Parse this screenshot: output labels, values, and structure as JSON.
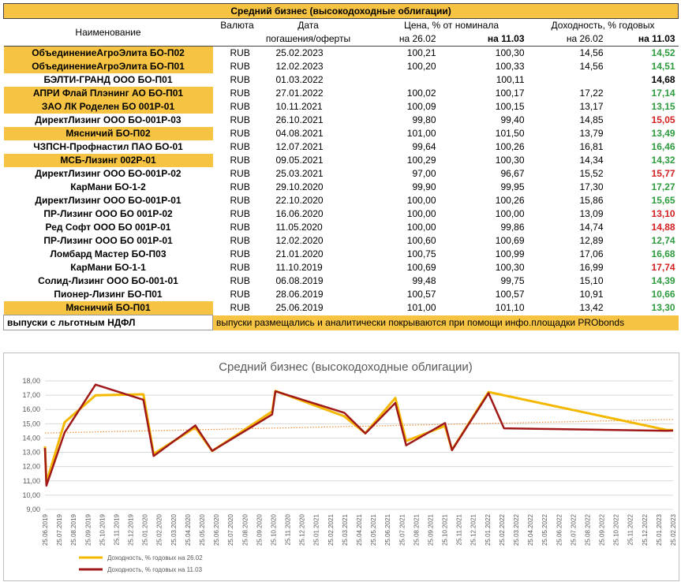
{
  "table": {
    "title": "Средний бизнес (высокодоходные облигации)",
    "headers": {
      "name": "Наименование",
      "currency": "Валюта",
      "date_line1": "Дата",
      "date_line2": "погашения/оферты",
      "price_group": "Цена, % от номинала",
      "price_2602": "на 26.02",
      "price_1103": "на 11.03",
      "yield_group": "Доходность, % годовых",
      "yield_2602": "на 26.02",
      "yield_1103": "на 11.03"
    },
    "rows": [
      {
        "name": "ОбъединениеАгроЭлита  БО-П02",
        "cur": "RUB",
        "date": "25.02.2023",
        "p1": "100,21",
        "p2": "100,30",
        "y1": "14,56",
        "y2": "14,52",
        "hl": true,
        "color": "green"
      },
      {
        "name": "ОбъединениеАгроЭлита  БО-П01",
        "cur": "RUB",
        "date": "12.02.2023",
        "p1": "100,20",
        "p2": "100,33",
        "y1": "14,56",
        "y2": "14,51",
        "hl": true,
        "color": "green"
      },
      {
        "name": "БЭЛТИ-ГРАНД ООО БО-П01",
        "cur": "RUB",
        "date": "01.03.2022",
        "p1": "",
        "p2": "100,11",
        "y1": "",
        "y2": "14,68",
        "hl": false,
        "color": "black"
      },
      {
        "name": "АПРИ Флай Плэнинг АО БО-П01",
        "cur": "RUB",
        "date": "27.01.2022",
        "p1": "100,02",
        "p2": "100,17",
        "y1": "17,22",
        "y2": "17,14",
        "hl": true,
        "color": "green"
      },
      {
        "name": "ЗАО ЛК Роделен БО 001Р-01",
        "cur": "RUB",
        "date": "10.11.2021",
        "p1": "100,09",
        "p2": "100,15",
        "y1": "13,17",
        "y2": "13,15",
        "hl": true,
        "color": "green"
      },
      {
        "name": "ДиректЛизинг ООО БО-001Р-03",
        "cur": "RUB",
        "date": "26.10.2021",
        "p1": "99,80",
        "p2": "99,40",
        "y1": "14,85",
        "y2": "15,05",
        "hl": false,
        "color": "red"
      },
      {
        "name": "Мясничий БО-П02",
        "cur": "RUB",
        "date": "04.08.2021",
        "p1": "101,00",
        "p2": "101,50",
        "y1": "13,79",
        "y2": "13,49",
        "hl": true,
        "color": "green"
      },
      {
        "name": "ЧЗПСН-Профнастил ПАО БО-01",
        "cur": "RUB",
        "date": "12.07.2021",
        "p1": "99,64",
        "p2": "100,26",
        "y1": "16,81",
        "y2": "16,46",
        "hl": false,
        "color": "green"
      },
      {
        "name": "МСБ-Лизинг 002Р-01",
        "cur": "RUB",
        "date": "09.05.2021",
        "p1": "100,29",
        "p2": "100,30",
        "y1": "14,34",
        "y2": "14,32",
        "hl": true,
        "color": "green"
      },
      {
        "name": "ДиректЛизинг ООО БО-001Р-02",
        "cur": "RUB",
        "date": "25.03.2021",
        "p1": "97,00",
        "p2": "96,67",
        "y1": "15,52",
        "y2": "15,77",
        "hl": false,
        "color": "red"
      },
      {
        "name": "КарМани БО-1-2",
        "cur": "RUB",
        "date": "29.10.2020",
        "p1": "99,90",
        "p2": "99,95",
        "y1": "17,30",
        "y2": "17,27",
        "hl": false,
        "color": "green"
      },
      {
        "name": "ДиректЛизинг ООО БО-001Р-01",
        "cur": "RUB",
        "date": "22.10.2020",
        "p1": "100,00",
        "p2": "100,26",
        "y1": "15,86",
        "y2": "15,65",
        "hl": false,
        "color": "green"
      },
      {
        "name": "ПР-Лизинг ООО БО 001Р-02",
        "cur": "RUB",
        "date": "16.06.2020",
        "p1": "100,00",
        "p2": "100,00",
        "y1": "13,09",
        "y2": "13,10",
        "hl": false,
        "color": "red"
      },
      {
        "name": "Ред Софт ООО БО 001Р-01",
        "cur": "RUB",
        "date": "11.05.2020",
        "p1": "100,00",
        "p2": "99,86",
        "y1": "14,74",
        "y2": "14,88",
        "hl": false,
        "color": "red"
      },
      {
        "name": "ПР-Лизинг ООО БО 001Р-01",
        "cur": "RUB",
        "date": "12.02.2020",
        "p1": "100,60",
        "p2": "100,69",
        "y1": "12,89",
        "y2": "12,74",
        "hl": false,
        "color": "green"
      },
      {
        "name": "Ломбард Мастер БО-П03",
        "cur": "RUB",
        "date": "21.01.2020",
        "p1": "100,75",
        "p2": "100,99",
        "y1": "17,06",
        "y2": "16,68",
        "hl": false,
        "color": "green"
      },
      {
        "name": "КарМани БО-1-1",
        "cur": "RUB",
        "date": "11.10.2019",
        "p1": "100,69",
        "p2": "100,30",
        "y1": "16,99",
        "y2": "17,74",
        "hl": false,
        "color": "red"
      },
      {
        "name": "Солид-Лизинг ООО БО-001-01",
        "cur": "RUB",
        "date": "06.08.2019",
        "p1": "99,48",
        "p2": "99,75",
        "y1": "15,10",
        "y2": "14,39",
        "hl": false,
        "color": "green"
      },
      {
        "name": "Пионер-Лизинг БО-П01",
        "cur": "RUB",
        "date": "28.06.2019",
        "p1": "100,57",
        "p2": "100,57",
        "y1": "10,91",
        "y2": "10,66",
        "hl": false,
        "color": "green"
      },
      {
        "name": "Мясничий БО-П01",
        "cur": "RUB",
        "date": "25.06.2019",
        "p1": "101,00",
        "p2": "101,10",
        "y1": "13,42",
        "y2": "13,30",
        "hl": true,
        "color": "green"
      }
    ],
    "footer_left": "выпуски с льготным НДФЛ",
    "footer_right": "выпуски размещались и аналитически покрываются при помощи инфо.площадки PRObonds"
  },
  "colors": {
    "highlight": "#f6c343",
    "green": "#2e9b3e",
    "red": "#d42020",
    "series_2602": "#f5b800",
    "series_1103": "#a01818",
    "trend": "#f08a30"
  },
  "chart_data": {
    "type": "line",
    "title": "Средний бизнес (высокодоходные облигации)",
    "xlabel": "",
    "ylabel": "",
    "ylim": [
      9,
      18
    ],
    "yticks": [
      "9,00",
      "10,00",
      "11,00",
      "12,00",
      "13,00",
      "14,00",
      "15,00",
      "16,00",
      "17,00",
      "18,00"
    ],
    "xticks": [
      "25.06.2019",
      "25.07.2019",
      "25.08.2019",
      "25.09.2019",
      "25.10.2019",
      "25.11.2019",
      "25.12.2019",
      "25.01.2020",
      "25.02.2020",
      "25.03.2020",
      "25.04.2020",
      "25.05.2020",
      "25.06.2020",
      "25.07.2020",
      "25.08.2020",
      "25.09.2020",
      "25.10.2020",
      "25.11.2020",
      "25.12.2020",
      "25.01.2021",
      "25.02.2021",
      "25.03.2021",
      "25.04.2021",
      "25.05.2021",
      "25.06.2021",
      "25.07.2021",
      "25.08.2021",
      "25.09.2021",
      "25.10.2021",
      "25.11.2021",
      "25.12.2021",
      "25.01.2022",
      "25.02.2022",
      "25.03.2022",
      "25.04.2022",
      "25.05.2022",
      "25.06.2022",
      "25.07.2022",
      "25.08.2022",
      "25.09.2022",
      "25.10.2022",
      "25.11.2022",
      "25.12.2022",
      "25.01.2023",
      "25.02.2023"
    ],
    "grid": true,
    "legend_position": "bottom-left",
    "x": [
      "2019-06-25",
      "2019-06-28",
      "2019-08-06",
      "2019-10-11",
      "2020-01-21",
      "2020-02-12",
      "2020-05-11",
      "2020-06-16",
      "2020-10-22",
      "2020-10-29",
      "2021-03-25",
      "2021-05-09",
      "2021-07-12",
      "2021-08-04",
      "2021-10-26",
      "2021-11-10",
      "2022-01-27",
      "2022-03-01",
      "2023-02-12",
      "2023-02-25"
    ],
    "series": [
      {
        "name": "Доходность, % годовых на 26.02",
        "values": [
          13.42,
          10.91,
          15.1,
          16.99,
          17.06,
          12.89,
          14.74,
          13.09,
          15.86,
          17.3,
          15.52,
          14.34,
          16.81,
          13.79,
          14.85,
          13.17,
          17.22,
          null,
          14.56,
          14.56
        ]
      },
      {
        "name": "Доходность, % годовых на 11.03",
        "values": [
          13.3,
          10.66,
          14.39,
          17.74,
          16.68,
          12.74,
          14.88,
          13.1,
          15.65,
          17.27,
          15.77,
          14.32,
          16.46,
          13.49,
          15.05,
          13.15,
          17.14,
          14.68,
          14.51,
          14.52
        ]
      }
    ],
    "trendline": {
      "series": "Доходность, % годовых на 11.03",
      "start": 14.35,
      "end": 15.3
    }
  }
}
